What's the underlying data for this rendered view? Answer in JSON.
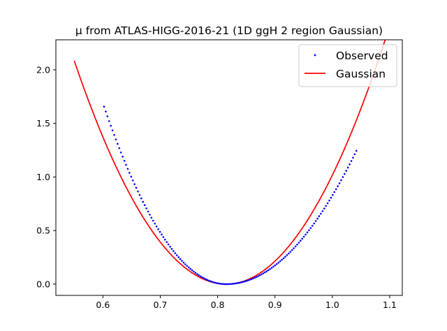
{
  "chart_data": {
    "type": "scatter",
    "title": "μ from ATLAS-HIGG-2016-21 (1D ggH 2 region Gaussian)",
    "xlabel": "",
    "ylabel": "",
    "xlim": [
      0.518,
      1.122
    ],
    "ylim": [
      -0.105,
      2.28
    ],
    "xticks": [
      0.6,
      0.7,
      0.8,
      0.9,
      1.0,
      1.1
    ],
    "xtick_labels": [
      "0.6",
      "0.7",
      "0.8",
      "0.9",
      "1.0",
      "1.1"
    ],
    "yticks": [
      0.0,
      0.5,
      1.0,
      1.5,
      2.0
    ],
    "ytick_labels": [
      "0.0",
      "0.5",
      "1.0",
      "1.5",
      "2.0"
    ],
    "grid": false,
    "legend_position": "top-right",
    "series": [
      {
        "name": "Observed",
        "kind": "scatter",
        "color": "#0000ff",
        "x_range": [
          0.602,
          1.042
        ],
        "center": 0.815,
        "width_left": 0.1655,
        "width_right": 0.2035,
        "count": 150
      },
      {
        "name": "Gaussian",
        "kind": "line",
        "color": "#ff0000",
        "x_range": [
          0.55,
          1.092
        ],
        "center": 0.815,
        "width": 0.1835
      }
    ]
  }
}
